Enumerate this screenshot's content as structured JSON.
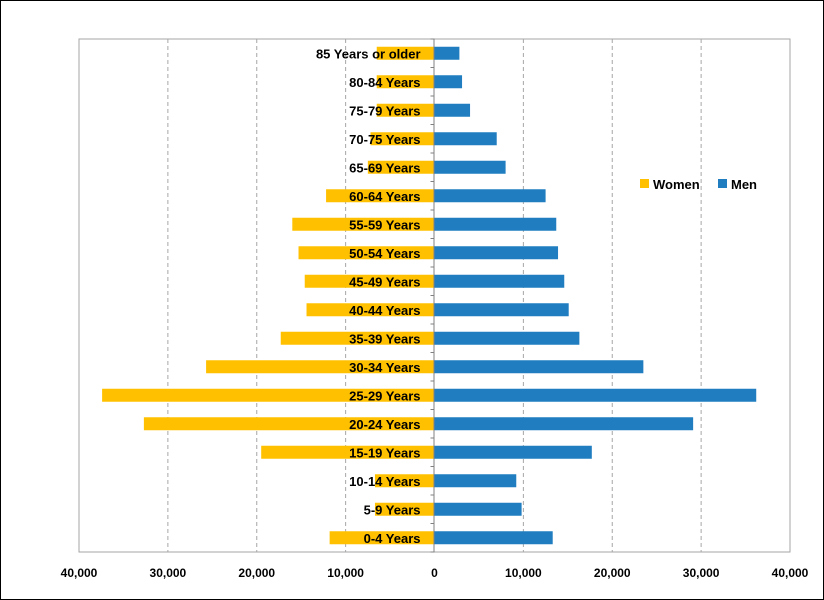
{
  "chart_data": {
    "type": "bar",
    "orientation": "horizontal",
    "title": "",
    "xlabel": "",
    "ylabel": "",
    "categories": [
      "85 Years or older",
      "80-84 Years",
      "75-79 Years",
      "70-75 Years",
      "65-69 Years",
      "60-64 Years",
      "55-59 Years",
      "50-54 Years",
      "45-49 Years",
      "40-44 Years",
      "35-39 Years",
      "30-34 Years",
      "25-29 Years",
      "20-24 Years",
      "15-19 Years",
      "10-14 Years",
      "5-9 Years",
      "0-4 Years"
    ],
    "series": [
      {
        "name": "Women",
        "color": "#FFC000",
        "values": [
          6500,
          6500,
          6500,
          7200,
          7500,
          12200,
          16000,
          15300,
          14600,
          14400,
          17300,
          25700,
          37400,
          32700,
          19500,
          6700,
          6700,
          11800
        ]
      },
      {
        "name": "Men",
        "color": "#1F7DC0",
        "values": [
          2800,
          3100,
          4000,
          7000,
          8000,
          12500,
          13700,
          13900,
          14600,
          15100,
          16300,
          23500,
          36200,
          29100,
          17700,
          9200,
          9800,
          13300
        ]
      }
    ],
    "xlim": [
      -40000,
      40000
    ],
    "xticks": [
      -40000,
      -30000,
      -20000,
      -10000,
      0,
      10000,
      20000,
      30000,
      40000
    ],
    "xtick_labels": [
      "40,000",
      "30,000",
      "20,000",
      "10,000",
      "0",
      "10,000",
      "20,000",
      "30,000",
      "40,000"
    ],
    "grid": "vertical dashed",
    "legend": {
      "position": "right",
      "entries": [
        "Women",
        "Men"
      ]
    }
  }
}
